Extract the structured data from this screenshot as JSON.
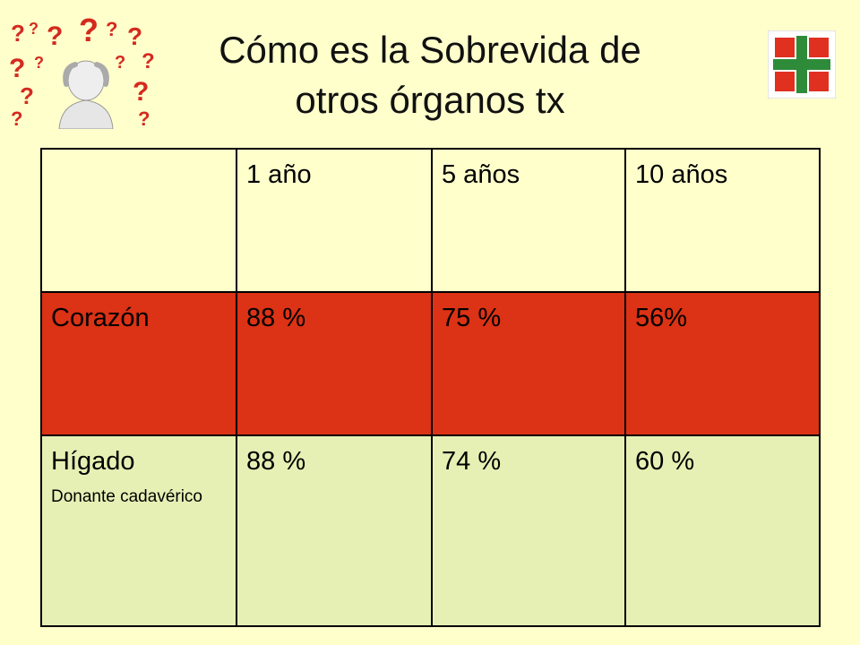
{
  "title": {
    "line1": "Cómo es la Sobrevida de",
    "line2": "otros órganos tx"
  },
  "table": {
    "header": [
      "",
      "1 año",
      "5 años",
      "10 años"
    ],
    "rows": [
      {
        "organ": "Corazón",
        "note": "",
        "values": [
          "88 %",
          "75 %",
          "56%"
        ],
        "color": "#dc3215"
      },
      {
        "organ": "Hígado",
        "note": "Donante cadavérico",
        "values": [
          "88 %",
          "74 %",
          "60 %"
        ],
        "color": "#e6f0b4"
      }
    ]
  },
  "colors": {
    "background": "#ffffcc",
    "red_row": "#dc3215",
    "green_row": "#e6f0b4",
    "logo_red": "#e03020",
    "logo_green": "#2e8b3a"
  },
  "icons": [
    "confused-person-question-marks-image",
    "cross-logo-icon"
  ]
}
